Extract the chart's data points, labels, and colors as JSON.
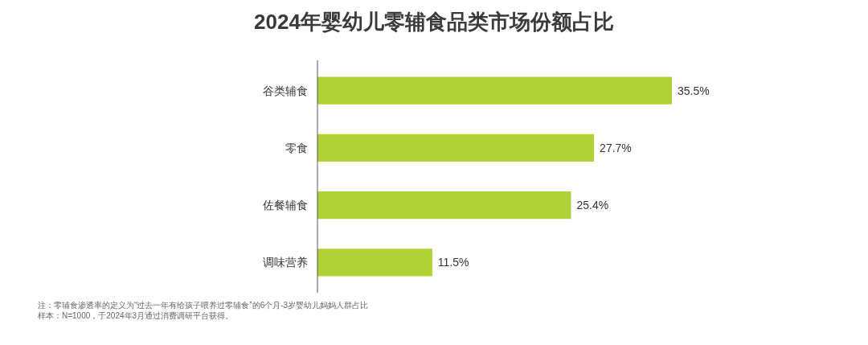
{
  "chart_data": {
    "type": "bar",
    "orientation": "horizontal",
    "title": "2024年婴幼儿零辅食品类市场份额占比",
    "categories": [
      "谷类辅食",
      "零食",
      "佐餐辅食",
      "调味营养"
    ],
    "values": [
      35.5,
      27.7,
      25.4,
      11.5
    ],
    "color": "#b0d236",
    "value_labels": [
      "35.5%",
      "27.7%",
      "25.4%",
      "11.5%"
    ],
    "annotations": [
      "注：零辅食渗透率的定义为“过去一年有给孩子喂养过零辅食”的6个月-3岁婴幼儿妈妈人群占比",
      "样本：N=1000，于2024年3月通过消费调研平台获得。"
    ]
  }
}
